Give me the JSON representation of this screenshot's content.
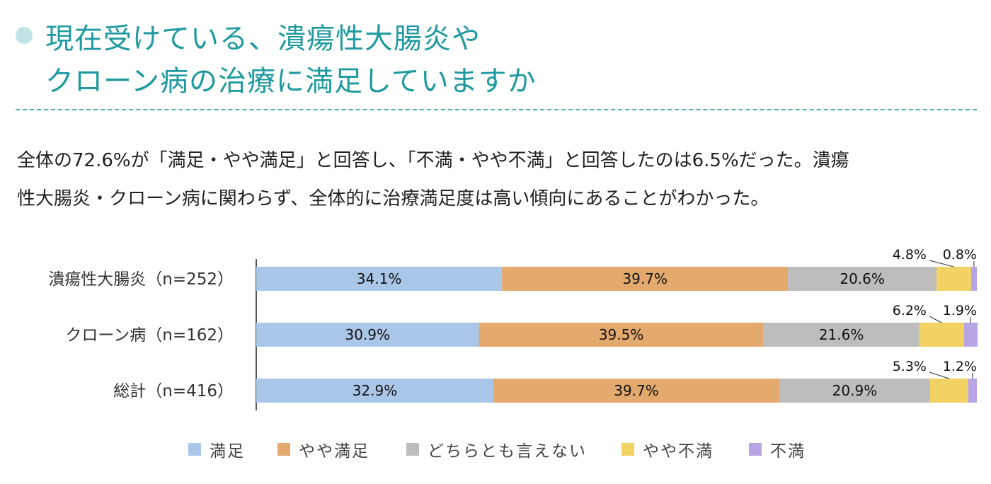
{
  "title": {
    "line1": "現在受けている、潰瘍性大腸炎や",
    "line2": "クローン病の治療に満足していますか"
  },
  "description": {
    "line1": "全体の72.6%が「満足・やや満足」と回答し、「不満・やや不満」と回答したのは6.5%だった。潰瘍",
    "line2": "性大腸炎・クローン病に関わらず、全体的に治療満足度は高い傾向にあることがわかった。"
  },
  "chart_data": {
    "type": "bar",
    "orientation": "horizontal",
    "stacked": true,
    "percent": true,
    "categories": [
      "潰瘍性大腸炎（n=252）",
      "クローン病（n=162）",
      "総計（n=416）"
    ],
    "series": [
      {
        "name": "満足",
        "color": "#aac7ea",
        "values": [
          34.1,
          30.9,
          32.9
        ]
      },
      {
        "name": "やや満足",
        "color": "#e3a96d",
        "values": [
          39.7,
          39.5,
          39.7
        ]
      },
      {
        "name": "どちらとも言えない",
        "color": "#bdbdbd",
        "values": [
          20.6,
          21.6,
          20.9
        ]
      },
      {
        "name": "やや不満",
        "color": "#f1d262",
        "values": [
          4.8,
          6.2,
          5.3
        ]
      },
      {
        "name": "不満",
        "color": "#b7a4e4",
        "values": [
          0.8,
          1.9,
          1.2
        ]
      }
    ],
    "xlim": [
      0,
      100
    ],
    "legend": "bottom"
  }
}
